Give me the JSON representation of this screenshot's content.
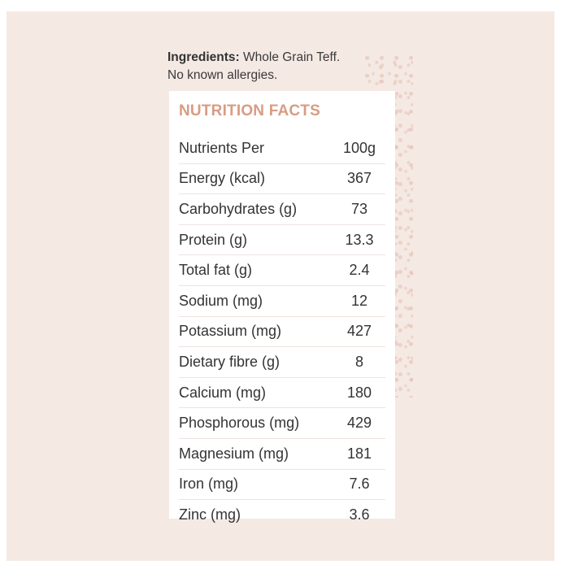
{
  "ingredients": {
    "label": "Ingredients:",
    "text": " Whole Grain Teff.",
    "allergy_note": "No known allergies."
  },
  "nutrition": {
    "title": "NUTRITION FACTS",
    "rows": [
      {
        "name": "Nutrients Per",
        "value": "100g"
      },
      {
        "name": "Energy (kcal)",
        "value": "367"
      },
      {
        "name": "Carbohydrates (g)",
        "value": "73"
      },
      {
        "name": "Protein (g)",
        "value": "13.3"
      },
      {
        "name": "Total fat (g)",
        "value": "2.4"
      },
      {
        "name": "Sodium (mg)",
        "value": "12"
      },
      {
        "name": "Potassium (mg)",
        "value": "427"
      },
      {
        "name": "Dietary fibre (g)",
        "value": "8"
      },
      {
        "name": "Calcium (mg)",
        "value": "180"
      },
      {
        "name": "Phosphorous (mg)",
        "value": "429"
      },
      {
        "name": "Magnesium (mg)",
        "value": "181"
      },
      {
        "name": "Iron (mg)",
        "value": "7.6"
      },
      {
        "name": "Zinc (mg)",
        "value": "3.6"
      }
    ]
  },
  "colors": {
    "background": "#f5e9e4",
    "title": "#d89c84",
    "text": "#333333"
  }
}
